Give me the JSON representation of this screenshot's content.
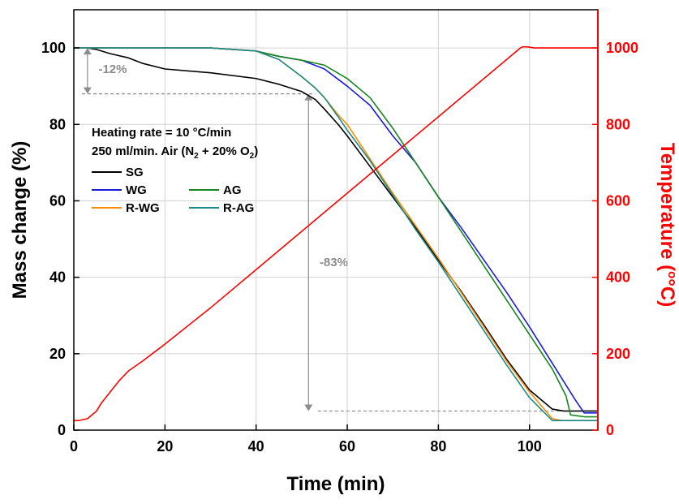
{
  "chart_data": {
    "type": "line",
    "x_axis": {
      "label": "Time (min)",
      "range": [
        0,
        115
      ],
      "ticks": [
        0,
        20,
        40,
        60,
        80,
        100
      ]
    },
    "y_left": {
      "label": "Mass change (%)",
      "range": [
        0,
        110
      ],
      "ticks": [
        0,
        20,
        40,
        60,
        80,
        100
      ]
    },
    "y_right": {
      "label_main": "Temperature (",
      "label_unit": "°C",
      "label_end": ")",
      "range": [
        0,
        1100
      ],
      "ticks": [
        0,
        200,
        400,
        600,
        800,
        1000
      ],
      "color": "#ff0000"
    },
    "grid": true,
    "info_lines": [
      {
        "text": "Heating rate = 10 °C/min"
      },
      {
        "parts": [
          {
            "t": "250 ml/min. Air (N"
          },
          {
            "t": "2",
            "sub": true
          },
          {
            "t": " + 20% O"
          },
          {
            "t": "2",
            "sub": true
          },
          {
            "t": ")"
          }
        ]
      }
    ],
    "legend": [
      {
        "name": "SG",
        "color": "#000000"
      },
      {
        "name": "WG",
        "color": "#1a1adc"
      },
      {
        "name": "AG",
        "color": "#16861e"
      },
      {
        "name": "R-WG",
        "color": "#ff8c00"
      },
      {
        "name": "R-AG",
        "color": "#1a8a8a"
      }
    ],
    "series": [
      {
        "name": "SG",
        "axis": "left",
        "color": "#000000",
        "x": [
          0,
          3,
          5,
          8,
          12,
          15,
          20,
          30,
          40,
          45,
          50,
          53,
          55,
          58,
          60,
          65,
          70,
          75,
          80,
          85,
          90,
          95,
          100,
          105,
          107.5,
          109,
          115
        ],
        "y": [
          100,
          100,
          99.6,
          98.5,
          97.4,
          96,
          94.5,
          93.5,
          92,
          90.5,
          88.6,
          86.5,
          84,
          80,
          77,
          69,
          61,
          53,
          44.5,
          36.3,
          27.5,
          18.5,
          10.5,
          5.5,
          5,
          5,
          5
        ]
      },
      {
        "name": "WG",
        "axis": "left",
        "color": "#1a1adc",
        "x": [
          0,
          3,
          10,
          20,
          30,
          40,
          45,
          50,
          55,
          60,
          65,
          70,
          75,
          80,
          85,
          90,
          95,
          100,
          105,
          110,
          112,
          115
        ],
        "y": [
          100,
          100,
          100,
          100,
          100,
          99.2,
          97.8,
          96.8,
          94.5,
          90,
          85,
          77,
          70,
          61,
          53,
          44.5,
          36,
          27,
          17.5,
          8,
          4.5,
          4.5
        ]
      },
      {
        "name": "AG",
        "axis": "left",
        "color": "#16861e",
        "x": [
          0,
          3,
          10,
          20,
          30,
          40,
          45,
          50,
          55,
          60,
          65,
          70,
          75,
          80,
          85,
          90,
          95,
          100,
          105,
          108,
          109,
          112,
          115
        ],
        "y": [
          100,
          100,
          100,
          100,
          100,
          99.2,
          97.8,
          96.8,
          95.5,
          92,
          87,
          79,
          70,
          61,
          52,
          43,
          34,
          25,
          16,
          9,
          4,
          3.5,
          3.5
        ]
      },
      {
        "name": "R-WG",
        "axis": "left",
        "color": "#ff8c00",
        "x": [
          0,
          3,
          10,
          20,
          30,
          40,
          45,
          50,
          53,
          55,
          58,
          60,
          65,
          70,
          75,
          80,
          85,
          90,
          95,
          100,
          105,
          107.2,
          115
        ],
        "y": [
          100,
          100,
          100,
          100,
          100,
          99.2,
          97,
          92.5,
          89.5,
          87,
          82.5,
          80,
          71,
          62,
          53.5,
          45,
          36,
          27,
          18,
          10,
          3,
          2.5,
          2.5
        ]
      },
      {
        "name": "R-AG",
        "axis": "left",
        "color": "#1a8a8a",
        "x": [
          0,
          3,
          10,
          20,
          30,
          40,
          45,
          50,
          53,
          55,
          58,
          60,
          65,
          70,
          75,
          80,
          85,
          90,
          95,
          100,
          105,
          106,
          108,
          115
        ],
        "y": [
          100,
          100,
          100,
          100,
          100,
          99.2,
          97,
          92.5,
          89.5,
          87,
          82,
          78.5,
          70.5,
          61.5,
          52.5,
          44,
          35,
          26,
          17,
          8.5,
          2.5,
          2.5,
          2.5,
          2.5
        ]
      },
      {
        "name": "Temperature",
        "axis": "right",
        "color": "#ff0000",
        "x": [
          0,
          1,
          3,
          5,
          6,
          8,
          10,
          12,
          15,
          20,
          30,
          40,
          50,
          60,
          70,
          80,
          90,
          95,
          98,
          98.5,
          99.5,
          101,
          103,
          105,
          110,
          115
        ],
        "y": [
          25,
          25,
          30,
          50,
          70,
          100,
          130,
          155,
          180,
          225,
          320,
          420,
          520,
          620,
          720,
          820,
          920,
          970,
          1000,
          1003,
          1003,
          1000,
          1000,
          1000,
          1000,
          1000
        ]
      }
    ],
    "annotations": [
      {
        "label": "-12%",
        "x": 3,
        "y_top": 100,
        "y_bottom": 88,
        "label_x": 4,
        "label_y": 94.5,
        "guide_x_end": 53
      },
      {
        "label": "-83%",
        "x": 51.5,
        "y_top": 88,
        "y_bottom": 5,
        "label_x": 52.5,
        "label_y": 44,
        "guide_x_start": 50,
        "guide_y": 5,
        "guide_x_end": 115
      }
    ]
  }
}
